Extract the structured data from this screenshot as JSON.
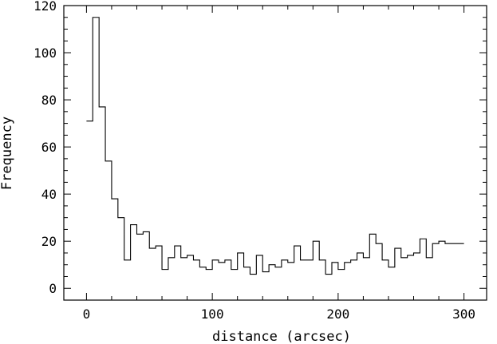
{
  "chart_data": {
    "type": "histogram",
    "title": "",
    "xlabel": "distance (arcsec)",
    "ylabel": "Frequency",
    "xlim": [
      -18,
      318
    ],
    "ylim": [
      -5,
      120
    ],
    "xticks": [
      0,
      100,
      200,
      300
    ],
    "yticks": [
      0,
      20,
      40,
      60,
      80,
      100,
      120
    ],
    "grid": false,
    "bin_width": 5,
    "bin_starts": [
      0,
      5,
      10,
      15,
      20,
      25,
      30,
      35,
      40,
      45,
      50,
      55,
      60,
      65,
      70,
      75,
      80,
      85,
      90,
      95,
      100,
      105,
      110,
      115,
      120,
      125,
      130,
      135,
      140,
      145,
      150,
      155,
      160,
      165,
      170,
      175,
      180,
      185,
      190,
      195,
      200,
      205,
      210,
      215,
      220,
      225,
      230,
      235,
      240,
      245,
      250,
      255,
      260,
      265,
      270,
      275,
      280,
      285,
      290,
      295
    ],
    "values": [
      71,
      115,
      77,
      54,
      38,
      30,
      12,
      27,
      23,
      24,
      17,
      18,
      8,
      13,
      18,
      13,
      14,
      12,
      9,
      8,
      12,
      11,
      12,
      8,
      15,
      9,
      6,
      14,
      7,
      10,
      9,
      12,
      11,
      18,
      12,
      12,
      20,
      12,
      6,
      11,
      8,
      11,
      12,
      15,
      13,
      23,
      19,
      12,
      9,
      17,
      13,
      14,
      15,
      21,
      13,
      19,
      20,
      19,
      19,
      19
    ]
  }
}
